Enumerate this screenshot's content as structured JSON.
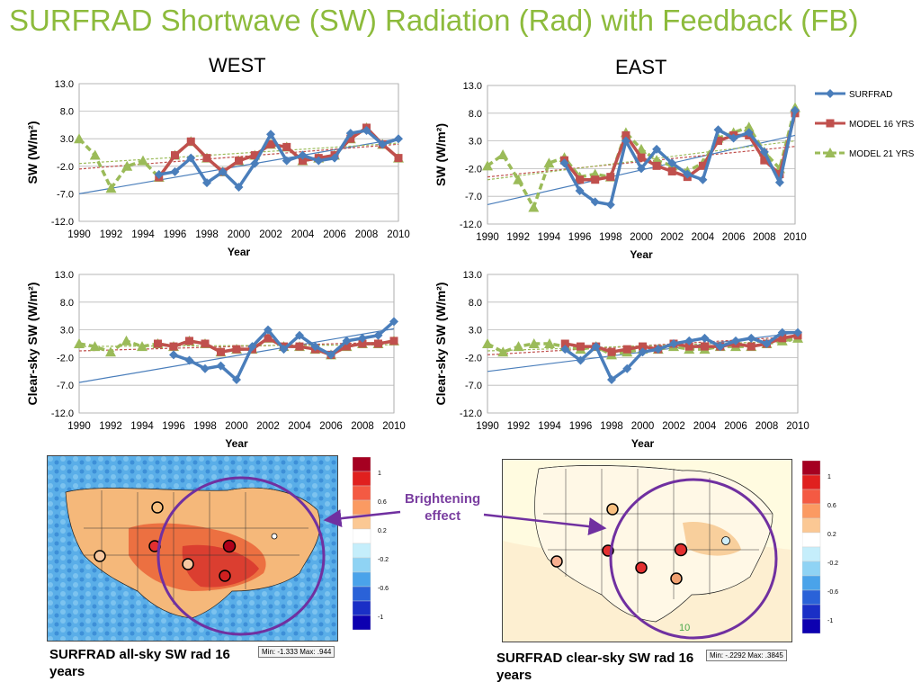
{
  "title": "SURFRAD Shortwave (SW) Radiation (Rad) with Feedback (FB)",
  "west_label": "WEST",
  "east_label": "EAST",
  "legend": [
    "SURFRAD",
    "MODEL 16 YRS",
    "MODEL 21 YRS"
  ],
  "colors": {
    "surfrad": "#4a7ebb",
    "model16": "#c0504d",
    "model21": "#9bbb59",
    "title": "#8dbb3c",
    "arrow": "#7030a0"
  },
  "brightening": [
    "Brightening",
    "effect"
  ],
  "captions": {
    "left": "SURFRAD all-sky SW rad 16 years",
    "right": "SURFRAD clear-sky SW rad 16 years"
  },
  "minmax": {
    "left": "Min: -1.333 Max: .944",
    "right": "Min: -.2292 Max: .3845"
  },
  "colorbar_ticks": [
    "1",
    "0.6",
    "0.2",
    "-0.2",
    "-0.6",
    "-1"
  ],
  "map_marker_label": "10",
  "chart_data": [
    {
      "id": "west-allsky",
      "type": "line",
      "xlabel": "Year",
      "ylabel": "SW (W/m²)",
      "ylim": [
        -12,
        13
      ],
      "yticks": [
        "13.0",
        "8.0",
        "3.0",
        "-2.0",
        "-7.0",
        "-12.0"
      ],
      "xticks": [
        "1990",
        "1992",
        "1994",
        "1996",
        "1998",
        "2000",
        "2002",
        "2004",
        "2006",
        "2008",
        "2010"
      ],
      "series": [
        {
          "name": "SURFRAD",
          "x": [
            1995,
            1996,
            1997,
            1998,
            1999,
            2000,
            2001,
            2002,
            2003,
            2004,
            2005,
            2006,
            2007,
            2008,
            2009,
            2010
          ],
          "y": [
            -3.5,
            -3.0,
            -0.5,
            -5.0,
            -3.0,
            -5.8,
            -1.5,
            3.8,
            -1.0,
            0.0,
            -1.0,
            -0.5,
            4.0,
            4.5,
            2.0,
            3.0
          ]
        },
        {
          "name": "MODEL 16 YRS",
          "x": [
            1995,
            1996,
            1997,
            1998,
            1999,
            2000,
            2001,
            2002,
            2003,
            2004,
            2005,
            2006,
            2007,
            2008,
            2009,
            2010
          ],
          "y": [
            -4.0,
            0.0,
            2.5,
            -0.5,
            -3.0,
            -1.0,
            0.0,
            2.0,
            1.5,
            -1.0,
            -0.5,
            0.0,
            3.0,
            5.0,
            2.0,
            -0.5
          ]
        },
        {
          "name": "MODEL 21 YRS",
          "x": [
            1990,
            1991,
            1992,
            1993,
            1994,
            1995,
            1996,
            1997,
            1998,
            1999,
            2000,
            2001,
            2002,
            2003,
            2004,
            2005,
            2006,
            2007,
            2008,
            2009,
            2010
          ],
          "y": [
            3.0,
            0.0,
            -6.0,
            -2.0,
            -1.0,
            -4.0,
            0.0,
            2.5,
            -0.5,
            -3.0,
            -1.0,
            0.0,
            2.0,
            1.5,
            -1.0,
            -0.5,
            0.0,
            3.0,
            5.0,
            2.0,
            -0.5
          ]
        }
      ],
      "trends": [
        {
          "series": "SURFRAD",
          "y": [
            -7.0,
            3.0
          ]
        },
        {
          "series": "MODEL 16 YRS",
          "y": [
            -2.5,
            2.0
          ]
        },
        {
          "series": "MODEL 21 YRS",
          "y": [
            -1.5,
            2.2
          ]
        }
      ]
    },
    {
      "id": "east-allsky",
      "type": "line",
      "xlabel": "Year",
      "ylabel": "SW (W/m²)",
      "ylim": [
        -12,
        13
      ],
      "yticks": [
        "13.0",
        "8.0",
        "3.0",
        "-2.0",
        "-7.0",
        "-12.0"
      ],
      "xticks": [
        "1990",
        "1992",
        "1994",
        "1996",
        "1998",
        "2000",
        "2002",
        "2004",
        "2006",
        "2008",
        "2010"
      ],
      "series": [
        {
          "name": "SURFRAD",
          "x": [
            1995,
            1996,
            1997,
            1998,
            1999,
            2000,
            2001,
            2002,
            2003,
            2004,
            2005,
            2006,
            2007,
            2008,
            2009,
            2010
          ],
          "y": [
            -1.0,
            -6.0,
            -8.0,
            -8.5,
            3.0,
            -2.0,
            1.5,
            -1.0,
            -3.0,
            -4.0,
            5.0,
            3.5,
            4.5,
            1.0,
            -4.5,
            8.5
          ]
        },
        {
          "name": "MODEL 16 YRS",
          "x": [
            1995,
            1996,
            1997,
            1998,
            1999,
            2000,
            2001,
            2002,
            2003,
            2004,
            2005,
            2006,
            2007,
            2008,
            2009,
            2010
          ],
          "y": [
            -0.5,
            -4.0,
            -4.0,
            -3.5,
            4.0,
            0.0,
            -1.5,
            -2.5,
            -3.5,
            -1.5,
            3.0,
            4.0,
            4.0,
            -0.5,
            -3.0,
            8.0
          ]
        },
        {
          "name": "MODEL 21 YRS",
          "x": [
            1990,
            1991,
            1992,
            1993,
            1994,
            1995,
            1996,
            1997,
            1998,
            1999,
            2000,
            2001,
            2002,
            2003,
            2004,
            2005,
            2006,
            2007,
            2008,
            2009,
            2010
          ],
          "y": [
            -1.5,
            0.5,
            -4.0,
            -9.0,
            -1.0,
            0.0,
            -3.5,
            -3.0,
            -3.5,
            4.5,
            1.5,
            -0.5,
            -1.5,
            -2.5,
            -1.0,
            3.5,
            4.5,
            5.5,
            1.0,
            -2.0,
            9.0
          ]
        }
      ],
      "trends": [
        {
          "series": "SURFRAD",
          "y": [
            -8.5,
            4.0
          ]
        },
        {
          "series": "MODEL 16 YRS",
          "y": [
            -3.5,
            2.0
          ]
        },
        {
          "series": "MODEL 21 YRS",
          "y": [
            -4.0,
            3.0
          ]
        }
      ]
    },
    {
      "id": "west-clearsky",
      "type": "line",
      "xlabel": "Year",
      "ylabel": "Clear-sky SW (W/m²)",
      "ylim": [
        -12,
        13
      ],
      "yticks": [
        "13.0",
        "8.0",
        "3.0",
        "-2.0",
        "-7.0",
        "-12.0"
      ],
      "xticks": [
        "1990",
        "1992",
        "1994",
        "1996",
        "1998",
        "2000",
        "2002",
        "2004",
        "2006",
        "2008",
        "2010"
      ],
      "series": [
        {
          "name": "SURFRAD",
          "x": [
            1996,
            1997,
            1998,
            1999,
            2000,
            2001,
            2002,
            2003,
            2004,
            2005,
            2006,
            2007,
            2008,
            2009,
            2010
          ],
          "y": [
            -1.5,
            -2.5,
            -4.0,
            -3.5,
            -6.0,
            0.0,
            3.0,
            -0.5,
            2.0,
            0.0,
            -1.5,
            1.0,
            1.5,
            2.0,
            4.5
          ]
        },
        {
          "name": "MODEL 16 YRS",
          "x": [
            1995,
            1996,
            1997,
            1998,
            1999,
            2000,
            2001,
            2002,
            2003,
            2004,
            2005,
            2006,
            2007,
            2008,
            2009,
            2010
          ],
          "y": [
            0.5,
            0.0,
            1.0,
            0.5,
            -1.0,
            -0.5,
            -0.5,
            1.5,
            0.0,
            0.0,
            -0.5,
            -1.5,
            0.0,
            0.5,
            0.5,
            1.0
          ]
        },
        {
          "name": "MODEL 21 YRS",
          "x": [
            1990,
            1991,
            1992,
            1993,
            1994,
            1995,
            1996,
            1997,
            1998,
            1999,
            2000,
            2001,
            2002,
            2003,
            2004,
            2005,
            2006,
            2007,
            2008,
            2009,
            2010
          ],
          "y": [
            0.5,
            0.0,
            -1.0,
            1.0,
            0.0,
            0.5,
            0.0,
            1.0,
            0.5,
            -1.0,
            -0.5,
            -0.5,
            1.5,
            0.0,
            0.0,
            -0.5,
            -1.5,
            0.0,
            0.5,
            0.5,
            1.0
          ]
        }
      ],
      "trends": [
        {
          "series": "SURFRAD",
          "y": [
            -6.5,
            3.2
          ]
        },
        {
          "series": "MODEL 16 YRS",
          "y": [
            -0.8,
            0.8
          ]
        },
        {
          "series": "MODEL 21 YRS",
          "y": [
            0.0,
            0.3
          ]
        }
      ]
    },
    {
      "id": "east-clearsky",
      "type": "line",
      "xlabel": "Year",
      "ylabel": "Clear-sky SW (W/m²)",
      "ylim": [
        -12,
        13
      ],
      "yticks": [
        "13.0",
        "8.0",
        "3.0",
        "-2.0",
        "-7.0",
        "-12.0"
      ],
      "xticks": [
        "1990",
        "1992",
        "1994",
        "1996",
        "1998",
        "2000",
        "2002",
        "2004",
        "2006",
        "2008",
        "2010"
      ],
      "series": [
        {
          "name": "SURFRAD",
          "x": [
            1995,
            1996,
            1997,
            1998,
            1999,
            2000,
            2001,
            2002,
            2003,
            2004,
            2005,
            2006,
            2007,
            2008,
            2009,
            2010
          ],
          "y": [
            -0.5,
            -2.5,
            0.0,
            -6.0,
            -4.0,
            -1.0,
            -0.5,
            0.5,
            1.0,
            1.5,
            0.0,
            1.0,
            1.5,
            0.5,
            2.5,
            2.5
          ]
        },
        {
          "name": "MODEL 16 YRS",
          "x": [
            1995,
            1996,
            1997,
            1998,
            1999,
            2000,
            2001,
            2002,
            2003,
            2004,
            2005,
            2006,
            2007,
            2008,
            2009,
            2010
          ],
          "y": [
            0.5,
            0.0,
            0.0,
            -1.0,
            -0.5,
            0.0,
            -0.5,
            0.5,
            0.0,
            0.0,
            0.0,
            0.5,
            0.0,
            0.5,
            1.5,
            2.0
          ]
        },
        {
          "name": "MODEL 21 YRS",
          "x": [
            1990,
            1991,
            1992,
            1993,
            1994,
            1995,
            1996,
            1997,
            1998,
            1999,
            2000,
            2001,
            2002,
            2003,
            2004,
            2005,
            2006,
            2007,
            2008,
            2009,
            2010
          ],
          "y": [
            0.5,
            -1.0,
            0.0,
            0.5,
            0.5,
            0.0,
            -0.5,
            0.0,
            -1.5,
            -1.0,
            -0.5,
            -0.5,
            0.0,
            -0.5,
            -0.5,
            0.0,
            0.0,
            0.0,
            0.5,
            1.0,
            1.5
          ]
        }
      ],
      "trends": [
        {
          "series": "SURFRAD",
          "y": [
            -4.5,
            2.5
          ]
        },
        {
          "series": "MODEL 16 YRS",
          "y": [
            -1.5,
            1.8
          ]
        },
        {
          "series": "MODEL 21 YRS",
          "y": [
            -0.8,
            1.0
          ]
        }
      ]
    }
  ]
}
